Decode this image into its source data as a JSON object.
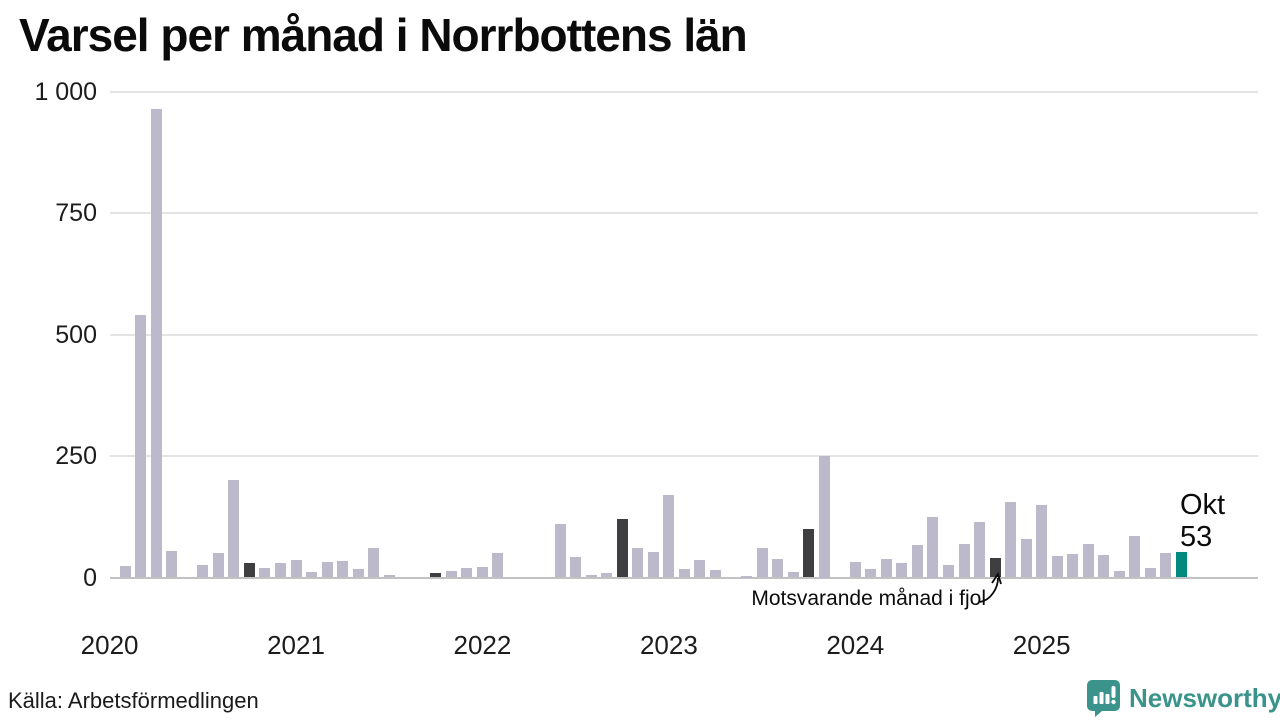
{
  "title": "Varsel per månad i Norrbottens län",
  "source": "Källa: Arbetsförmedlingen",
  "brand": {
    "name": "Newsworthy",
    "color": "#3a948b",
    "icon": "newsworthy-bubble-chart-icon"
  },
  "chart_data": {
    "type": "bar",
    "title": "Varsel per månad i Norrbottens län",
    "x_range": [
      "2020-01",
      "2025-10"
    ],
    "years": [
      "2020",
      "2021",
      "2022",
      "2023",
      "2024",
      "2025"
    ],
    "series_by_year": {
      "2020": [
        0,
        24,
        540,
        965,
        55,
        0,
        25,
        50,
        200,
        30,
        20,
        30
      ],
      "2021": [
        37,
        12,
        32,
        33,
        17,
        60,
        5,
        0,
        0,
        9,
        14,
        19
      ],
      "2022": [
        22,
        50,
        0,
        0,
        0,
        110,
        43,
        6,
        10,
        120,
        61,
        53
      ],
      "2023": [
        170,
        18,
        36,
        15,
        0,
        3,
        60,
        39,
        12,
        100,
        250,
        0
      ],
      "2024": [
        32,
        18,
        38,
        29,
        66,
        125,
        26,
        68,
        115,
        40,
        155,
        80
      ],
      "2025": [
        150,
        45,
        48,
        70,
        47,
        14,
        85,
        20,
        50,
        53
      ]
    },
    "ylim": [
      0,
      1000
    ],
    "yticks": [
      0,
      250,
      500,
      750,
      1000
    ],
    "ytick_labels": [
      "0",
      "250",
      "500",
      "750",
      "1 000"
    ],
    "year_tick_labels": [
      "2020",
      "2021",
      "2022",
      "2023",
      "2024",
      "2025"
    ],
    "grid": true,
    "highlight": {
      "dark_month_index": 9,
      "current": {
        "year": "2025",
        "month_index": 9,
        "value": 53
      }
    },
    "annotation": {
      "text": "Motsvarande månad i fjol",
      "points_to": "2024-10"
    },
    "current_bar_label": {
      "line1": "Okt",
      "line2": "53"
    },
    "colors": {
      "bar": "#bcb9cb",
      "last_year_bar": "#3f3f42",
      "current_bar": "#00897d",
      "grid": "#e4e4e4",
      "axis_line": "#c2c2c2"
    }
  }
}
